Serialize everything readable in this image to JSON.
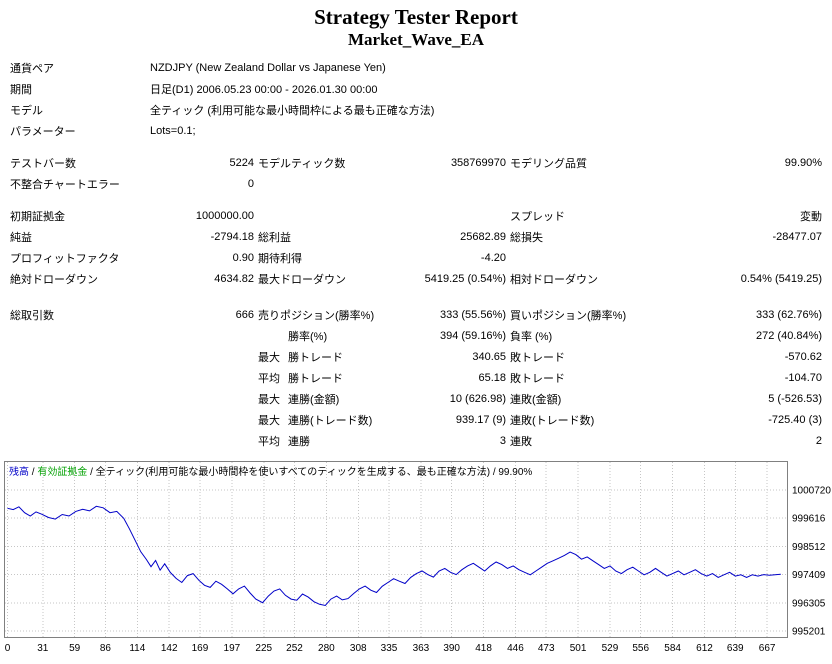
{
  "report": {
    "title": "Strategy Tester Report",
    "subtitle": "Market_Wave_EA",
    "info_rows": [
      {
        "label": "通貨ペア",
        "value": "NZDJPY (New Zealand Dollar vs Japanese Yen)"
      },
      {
        "label": "期間",
        "value": "日足(D1) 2006.05.23 00:00 - 2026.01.30 00:00"
      },
      {
        "label": "モデル",
        "value": "全ティック (利用可能な最小時間枠による最も正確な方法)"
      },
      {
        "label": "パラメーター",
        "value": "Lots=0.1;"
      }
    ],
    "stat_rows": [
      {
        "gap_before": 11,
        "c1": "テストバー数",
        "c2": "5224",
        "c3": "モデルティック数",
        "c4": "358769970",
        "c5": "モデリング品質",
        "c6": "99.90%"
      },
      {
        "c1": "不整合チャートエラー",
        "c2": "0",
        "c3": "",
        "c4": "",
        "c5": "",
        "c6": ""
      },
      {
        "gap_before": 11,
        "c1": "初期証拠金",
        "c2": "1000000.00",
        "c3": "",
        "c4": "",
        "c5": "スプレッド",
        "c6": "変動"
      },
      {
        "c1": "純益",
        "c2": "-2794.18",
        "c3": "総利益",
        "c4": "25682.89",
        "c5": "総損失",
        "c6": "-28477.07"
      },
      {
        "c1": "プロフィットファクタ",
        "c2": "0.90",
        "c3": "期待利得",
        "c4": "-4.20",
        "c5": "",
        "c6": ""
      },
      {
        "c1": "絶対ドローダウン",
        "c2": "4634.82",
        "c3": "最大ドローダウン",
        "c4": "5419.25 (0.54%)",
        "c5": "相対ドローダウン",
        "c6": "0.54% (5419.25)"
      },
      {
        "gap_before": 15,
        "c1": "総取引数",
        "c2": "666",
        "c3": "売りポジション(勝率%)",
        "c4": "333 (55.56%)",
        "c5": "買いポジション(勝率%)",
        "c6": "333 (62.76%)"
      },
      {
        "c1": "",
        "c2": "",
        "c3p": "",
        "c3": "勝率(%)",
        "c4": "394 (59.16%)",
        "c5": "負率 (%)",
        "c6": "272 (40.84%)"
      },
      {
        "c1": "",
        "c2": "",
        "c3p": "最大",
        "c3": "勝トレード",
        "c4": "340.65",
        "c5": "敗トレード",
        "c6": "-570.62"
      },
      {
        "c1": "",
        "c2": "",
        "c3p": "平均",
        "c3": "勝トレード",
        "c4": "65.18",
        "c5": "敗トレード",
        "c6": "-104.70"
      },
      {
        "c1": "",
        "c2": "",
        "c3p": "最大",
        "c3": "連勝(金額)",
        "c4": "10 (626.98)",
        "c5": "連敗(金額)",
        "c6": "5 (-526.53)"
      },
      {
        "c1": "",
        "c2": "",
        "c3p": "最大",
        "c3": "連勝(トレード数)",
        "c4": "939.17 (9)",
        "c5": "連敗(トレード数)",
        "c6": "-725.40 (3)"
      },
      {
        "c1": "",
        "c2": "",
        "c3p": "平均",
        "c3": "連勝",
        "c4": "3",
        "c5": "連敗",
        "c6": "2"
      }
    ]
  },
  "chart_data": {
    "type": "line",
    "title": "",
    "legend_parts": [
      {
        "text": "残高",
        "color": "#0000c8"
      },
      {
        "text": " / ",
        "color": "#000000"
      },
      {
        "text": "有効証拠金",
        "color": "#00a000"
      },
      {
        "text": " / 全ティック(利用可能な最小時間枠を使いすべてのティックを生成する、最も正確な方法) / 99.90%",
        "color": "#000000"
      }
    ],
    "x_ticks": [
      0,
      31,
      59,
      86,
      114,
      142,
      169,
      197,
      225,
      252,
      280,
      308,
      335,
      363,
      390,
      418,
      446,
      473,
      501,
      529,
      556,
      584,
      612,
      639,
      667
    ],
    "y_ticks": [
      1000720,
      999616,
      998512,
      997409,
      996305,
      995201
    ],
    "x_max_bars": 684,
    "plot_y_min": 994970,
    "plot_y_max": 1001850,
    "line_color": "#0000c8",
    "grid_color": "#c6c6c6",
    "border_color": "#808080",
    "series": [
      {
        "name": "残高",
        "points": [
          [
            0,
            1000000
          ],
          [
            5,
            999950
          ],
          [
            10,
            1000060
          ],
          [
            15,
            999830
          ],
          [
            20,
            999700
          ],
          [
            25,
            999860
          ],
          [
            30,
            999770
          ],
          [
            36,
            999640
          ],
          [
            42,
            999580
          ],
          [
            48,
            999760
          ],
          [
            54,
            999700
          ],
          [
            60,
            999880
          ],
          [
            66,
            999960
          ],
          [
            72,
            999900
          ],
          [
            78,
            1000080
          ],
          [
            84,
            1000020
          ],
          [
            90,
            999830
          ],
          [
            96,
            999880
          ],
          [
            102,
            999610
          ],
          [
            107,
            999200
          ],
          [
            112,
            998750
          ],
          [
            117,
            998300
          ],
          [
            122,
            998000
          ],
          [
            126,
            997720
          ],
          [
            130,
            997960
          ],
          [
            134,
            997580
          ],
          [
            138,
            997830
          ],
          [
            143,
            997490
          ],
          [
            148,
            997260
          ],
          [
            153,
            997100
          ],
          [
            158,
            997370
          ],
          [
            163,
            997450
          ],
          [
            168,
            997190
          ],
          [
            173,
            996990
          ],
          [
            178,
            996910
          ],
          [
            183,
            997150
          ],
          [
            188,
            997030
          ],
          [
            193,
            996850
          ],
          [
            198,
            996660
          ],
          [
            203,
            996850
          ],
          [
            208,
            996960
          ],
          [
            213,
            996690
          ],
          [
            218,
            996450
          ],
          [
            224,
            996310
          ],
          [
            229,
            996570
          ],
          [
            234,
            996770
          ],
          [
            239,
            996850
          ],
          [
            244,
            996600
          ],
          [
            249,
            996450
          ],
          [
            254,
            996410
          ],
          [
            259,
            996650
          ],
          [
            264,
            996530
          ],
          [
            269,
            996350
          ],
          [
            274,
            996250
          ],
          [
            279,
            996200
          ],
          [
            284,
            996450
          ],
          [
            289,
            996570
          ],
          [
            294,
            996420
          ],
          [
            299,
            996470
          ],
          [
            304,
            996670
          ],
          [
            309,
            996850
          ],
          [
            314,
            996960
          ],
          [
            319,
            996800
          ],
          [
            324,
            996710
          ],
          [
            329,
            996950
          ],
          [
            334,
            997100
          ],
          [
            339,
            997250
          ],
          [
            344,
            997150
          ],
          [
            349,
            997060
          ],
          [
            354,
            997300
          ],
          [
            359,
            997450
          ],
          [
            364,
            997550
          ],
          [
            369,
            997410
          ],
          [
            374,
            997310
          ],
          [
            379,
            997550
          ],
          [
            384,
            997650
          ],
          [
            389,
            997500
          ],
          [
            394,
            997410
          ],
          [
            399,
            997600
          ],
          [
            404,
            997750
          ],
          [
            409,
            997850
          ],
          [
            414,
            997700
          ],
          [
            419,
            997550
          ],
          [
            424,
            997750
          ],
          [
            429,
            997900
          ],
          [
            434,
            997800
          ],
          [
            439,
            997650
          ],
          [
            444,
            997750
          ],
          [
            449,
            997600
          ],
          [
            454,
            997500
          ],
          [
            459,
            997400
          ],
          [
            464,
            997550
          ],
          [
            469,
            997700
          ],
          [
            474,
            997850
          ],
          [
            479,
            997950
          ],
          [
            484,
            998050
          ],
          [
            489,
            998160
          ],
          [
            494,
            998290
          ],
          [
            499,
            998190
          ],
          [
            504,
            998010
          ],
          [
            509,
            998100
          ],
          [
            514,
            997950
          ],
          [
            519,
            997800
          ],
          [
            524,
            997650
          ],
          [
            529,
            997750
          ],
          [
            534,
            997550
          ],
          [
            539,
            997450
          ],
          [
            544,
            997600
          ],
          [
            549,
            997700
          ],
          [
            554,
            997550
          ],
          [
            559,
            997400
          ],
          [
            564,
            997500
          ],
          [
            569,
            997650
          ],
          [
            574,
            997500
          ],
          [
            579,
            997350
          ],
          [
            584,
            997450
          ],
          [
            589,
            997550
          ],
          [
            594,
            997400
          ],
          [
            599,
            997500
          ],
          [
            604,
            997600
          ],
          [
            609,
            997450
          ],
          [
            614,
            997350
          ],
          [
            619,
            997450
          ],
          [
            624,
            997300
          ],
          [
            629,
            997400
          ],
          [
            634,
            997500
          ],
          [
            639,
            997350
          ],
          [
            644,
            997400
          ],
          [
            649,
            997300
          ],
          [
            654,
            997400
          ],
          [
            659,
            997350
          ],
          [
            664,
            997410
          ],
          [
            669,
            997380
          ],
          [
            674,
            997400
          ],
          [
            679,
            997420
          ]
        ]
      }
    ]
  }
}
